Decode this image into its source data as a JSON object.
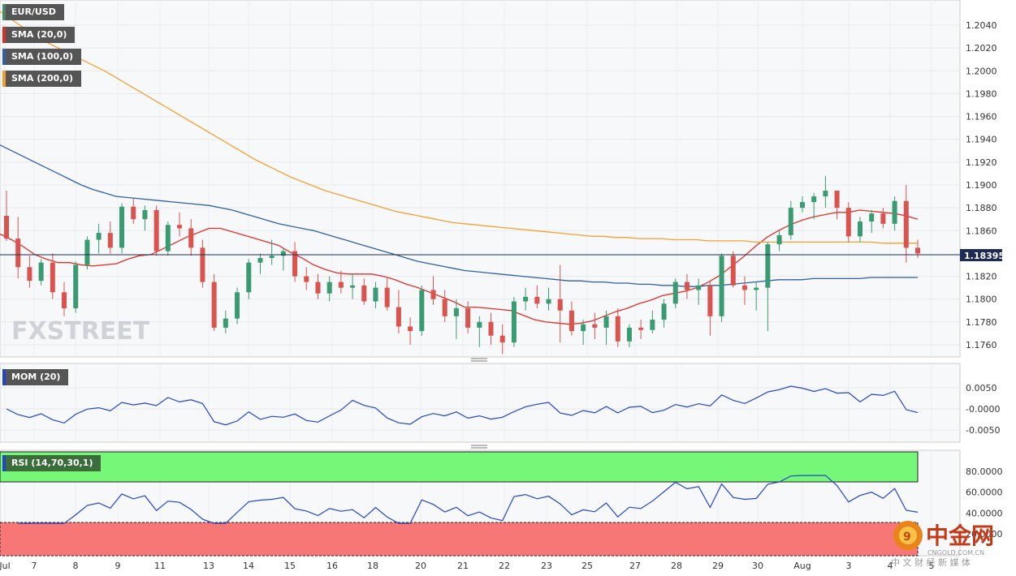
{
  "price_panel": {
    "legend": [
      {
        "label": "EUR/USD",
        "color": "#4a8a6a"
      },
      {
        "label": "SMA (20,0)",
        "color": "#d93025"
      },
      {
        "label": "SMA (100,0)",
        "color": "#2f5fa8"
      },
      {
        "label": "SMA (200,0)",
        "color": "#f0a030"
      }
    ],
    "current_price": "1.18395",
    "y_ticks": [
      "1.2040",
      "1.2020",
      "1.2000",
      "1.1980",
      "1.1960",
      "1.1940",
      "1.1920",
      "1.1900",
      "1.1880",
      "1.1860",
      "1.1820",
      "1.1800",
      "1.1780",
      "1.1760"
    ],
    "watermark": "FXSTREET"
  },
  "mom_panel": {
    "legend": "MOM (20)",
    "y_ticks": [
      "0.0050",
      "-0.0000",
      "-0.0050"
    ]
  },
  "rsi_panel": {
    "legend": "RSI (14,70,30,1)",
    "y_ticks": [
      "80.0000",
      "60.0000",
      "40.0000",
      "20.0000"
    ]
  },
  "x_axis_labels": [
    "Jul",
    "7",
    "8",
    "9",
    "11",
    "13",
    "14",
    "15",
    "16",
    "18",
    "20",
    "21",
    "22",
    "23",
    "25",
    "27",
    "28",
    "29",
    "30",
    "Aug",
    "3",
    "4",
    "5"
  ],
  "corner_logo": {
    "text": "中金网",
    "sub": "CNGOLD.COM.CN",
    "tagline": "中 文 财 经 新 媒 体"
  },
  "colors": {
    "up": "#3a9a72",
    "down": "#d9534f",
    "sma20": "#e0302a",
    "sma100": "#2f5fa8",
    "sma200": "#f5a030",
    "mom": "#2244cc",
    "rsi": "#2244cc",
    "ob": "#77f777",
    "os": "#f77777"
  },
  "chart_data": [
    {
      "type": "candlestick",
      "title": "EUR/USD",
      "ylim": [
        1.1752,
        1.2054
      ],
      "series": [
        {
          "name": "SMA (20,0)",
          "values": [
            1.1857,
            1.1852,
            1.1846,
            1.1839,
            1.1835,
            1.1832,
            1.1832,
            1.183,
            1.1829,
            1.183,
            1.1831,
            1.1835,
            1.1838,
            1.1839,
            1.1844,
            1.1849,
            1.1854,
            1.1858,
            1.1862,
            1.1862,
            1.1859,
            1.1856,
            1.1853,
            1.185,
            1.1847,
            1.1841,
            1.1836,
            1.183,
            1.1826,
            1.1823,
            1.1822,
            1.1822,
            1.1822,
            1.182,
            1.1817,
            1.1813,
            1.181,
            1.1806,
            1.1802,
            1.1798,
            1.1793,
            1.1793,
            1.1792,
            1.1791,
            1.179,
            1.1786,
            1.1782,
            1.178,
            1.1779,
            1.1778,
            1.1779,
            1.1781,
            1.1785,
            1.1789,
            1.1792,
            1.1796,
            1.1799,
            1.1803,
            1.1805,
            1.1807,
            1.181,
            1.1815,
            1.1821,
            1.1829,
            1.1837,
            1.1846,
            1.1854,
            1.186,
            1.1865,
            1.1869,
            1.1872,
            1.1874,
            1.1876,
            1.1876,
            1.1878,
            1.1877,
            1.1876,
            1.1875,
            1.1873,
            1.187
          ]
        },
        {
          "name": "SMA (100,0)",
          "values": [
            1.1935,
            1.193,
            1.1925,
            1.192,
            1.1915,
            1.191,
            1.1905,
            1.19,
            1.1896,
            1.1893,
            1.189,
            1.1889,
            1.1888,
            1.1887,
            1.1886,
            1.1885,
            1.1884,
            1.1883,
            1.1882,
            1.188,
            1.1878,
            1.1875,
            1.1872,
            1.1869,
            1.1866,
            1.1864,
            1.1862,
            1.186,
            1.1857,
            1.1854,
            1.1851,
            1.1848,
            1.1845,
            1.1842,
            1.1839,
            1.1836,
            1.1833,
            1.1831,
            1.1829,
            1.1827,
            1.1825,
            1.1824,
            1.1823,
            1.1822,
            1.1821,
            1.182,
            1.1819,
            1.1818,
            1.1817,
            1.1816,
            1.1816,
            1.1815,
            1.1815,
            1.1814,
            1.1814,
            1.1813,
            1.1813,
            1.1812,
            1.1812,
            1.1811,
            1.1811,
            1.1812,
            1.1812,
            1.1813,
            1.1814,
            1.1815,
            1.1816,
            1.1817,
            1.1817,
            1.1817,
            1.1818,
            1.1818,
            1.1818,
            1.1818,
            1.1818,
            1.1819,
            1.1819,
            1.1819,
            1.1819,
            1.1819
          ]
        },
        {
          "name": "SMA (200,0)",
          "values": [
            1.2052,
            1.2045,
            1.2038,
            1.2031,
            1.2025,
            1.202,
            1.2015,
            1.201,
            1.2005,
            1.2,
            1.1994,
            1.1988,
            1.1982,
            1.1976,
            1.197,
            1.1964,
            1.1958,
            1.1952,
            1.1946,
            1.194,
            1.1934,
            1.1928,
            1.1922,
            1.1917,
            1.1912,
            1.1907,
            1.1903,
            1.1899,
            1.1895,
            1.1892,
            1.1889,
            1.1886,
            1.1883,
            1.188,
            1.1877,
            1.1875,
            1.1873,
            1.1871,
            1.1869,
            1.1867,
            1.1866,
            1.1865,
            1.1864,
            1.1863,
            1.1862,
            1.1861,
            1.186,
            1.1859,
            1.1858,
            1.1857,
            1.1856,
            1.1855,
            1.1855,
            1.1854,
            1.1854,
            1.1853,
            1.1853,
            1.1853,
            1.1852,
            1.1852,
            1.1852,
            1.1851,
            1.1851,
            1.1851,
            1.1851,
            1.185,
            1.185,
            1.185,
            1.185,
            1.185,
            1.185,
            1.185,
            1.185,
            1.185,
            1.185,
            1.185,
            1.1849,
            1.1849,
            1.1849,
            1.1849
          ]
        }
      ],
      "candles": [
        [
          1.1873,
          1.1895,
          1.1851,
          1.1853
        ],
        [
          1.1853,
          1.1872,
          1.1818,
          1.1828
        ],
        [
          1.1828,
          1.1838,
          1.181,
          1.1816
        ],
        [
          1.1816,
          1.1835,
          1.1812,
          1.1832
        ],
        [
          1.1832,
          1.184,
          1.18,
          1.1806
        ],
        [
          1.1806,
          1.1815,
          1.1785,
          1.1792
        ],
        [
          1.1792,
          1.1833,
          1.1788,
          1.183
        ],
        [
          1.183,
          1.1855,
          1.1826,
          1.1852
        ],
        [
          1.1852,
          1.1866,
          1.184,
          1.1858
        ],
        [
          1.1858,
          1.1868,
          1.184,
          1.1845
        ],
        [
          1.1845,
          1.1884,
          1.184,
          1.1881
        ],
        [
          1.1881,
          1.1888,
          1.1866,
          1.187
        ],
        [
          1.187,
          1.1882,
          1.186,
          1.1878
        ],
        [
          1.1878,
          1.1882,
          1.1838,
          1.1842
        ],
        [
          1.1842,
          1.1868,
          1.1838,
          1.1865
        ],
        [
          1.1865,
          1.1876,
          1.1855,
          1.1862
        ],
        [
          1.1862,
          1.187,
          1.1838,
          1.1845
        ],
        [
          1.1845,
          1.1852,
          1.181,
          1.1815
        ],
        [
          1.1815,
          1.1822,
          1.1772,
          1.1775
        ],
        [
          1.1775,
          1.179,
          1.177,
          1.1783
        ],
        [
          1.1783,
          1.181,
          1.1778,
          1.1806
        ],
        [
          1.1806,
          1.1835,
          1.18,
          1.1832
        ],
        [
          1.1832,
          1.184,
          1.1822,
          1.1836
        ],
        [
          1.1836,
          1.1852,
          1.183,
          1.1838
        ],
        [
          1.1838,
          1.1845,
          1.1825,
          1.1842
        ],
        [
          1.1842,
          1.185,
          1.1815,
          1.182
        ],
        [
          1.182,
          1.1828,
          1.1808,
          1.1815
        ],
        [
          1.1815,
          1.1822,
          1.18,
          1.1805
        ],
        [
          1.1805,
          1.182,
          1.1798,
          1.1815
        ],
        [
          1.1815,
          1.1825,
          1.1805,
          1.181
        ],
        [
          1.181,
          1.1822,
          1.18,
          1.1812
        ],
        [
          1.1812,
          1.1818,
          1.1795,
          1.1798
        ],
        [
          1.1798,
          1.1815,
          1.1792,
          1.181
        ],
        [
          1.181,
          1.1818,
          1.179,
          1.1793
        ],
        [
          1.1793,
          1.1808,
          1.177,
          1.1776
        ],
        [
          1.1776,
          1.1784,
          1.176,
          1.1772
        ],
        [
          1.1772,
          1.1812,
          1.1768,
          1.1808
        ],
        [
          1.1808,
          1.182,
          1.1795,
          1.18
        ],
        [
          1.18,
          1.1808,
          1.178,
          1.1785
        ],
        [
          1.1785,
          1.18,
          1.1765,
          1.1792
        ],
        [
          1.1792,
          1.1798,
          1.177,
          1.1775
        ],
        [
          1.1775,
          1.1785,
          1.1758,
          1.178
        ],
        [
          1.178,
          1.1788,
          1.176,
          1.1768
        ],
        [
          1.1768,
          1.1778,
          1.1752,
          1.1762
        ],
        [
          1.1762,
          1.1802,
          1.1758,
          1.1798
        ],
        [
          1.1798,
          1.181,
          1.179,
          1.1802
        ],
        [
          1.1802,
          1.1812,
          1.1792,
          1.1796
        ],
        [
          1.1796,
          1.181,
          1.179,
          1.18
        ],
        [
          1.18,
          1.183,
          1.1762,
          1.179
        ],
        [
          1.179,
          1.1798,
          1.1768,
          1.1772
        ],
        [
          1.1772,
          1.1782,
          1.176,
          1.1778
        ],
        [
          1.1778,
          1.1788,
          1.1765,
          1.1775
        ],
        [
          1.1775,
          1.179,
          1.176,
          1.1785
        ],
        [
          1.1785,
          1.1792,
          1.1758,
          1.1763
        ],
        [
          1.1763,
          1.1778,
          1.1758,
          1.1775
        ],
        [
          1.1775,
          1.1782,
          1.1765,
          1.1773
        ],
        [
          1.1773,
          1.179,
          1.177,
          1.1782
        ],
        [
          1.1782,
          1.18,
          1.1775,
          1.1796
        ],
        [
          1.1796,
          1.1818,
          1.1792,
          1.1815
        ],
        [
          1.1815,
          1.1822,
          1.18,
          1.1808
        ],
        [
          1.1808,
          1.1818,
          1.1795,
          1.1812
        ],
        [
          1.1812,
          1.1815,
          1.1768,
          1.1785
        ],
        [
          1.1785,
          1.184,
          1.178,
          1.1838
        ],
        [
          1.1838,
          1.1842,
          1.181,
          1.1812
        ],
        [
          1.1812,
          1.182,
          1.1795,
          1.1808
        ],
        [
          1.1808,
          1.1815,
          1.179,
          1.181
        ],
        [
          1.181,
          1.185,
          1.1772,
          1.1848
        ],
        [
          1.1848,
          1.186,
          1.1842,
          1.1856
        ],
        [
          1.1856,
          1.1886,
          1.1852,
          1.188
        ],
        [
          1.188,
          1.189,
          1.1876,
          1.1885
        ],
        [
          1.1885,
          1.1893,
          1.187,
          1.189
        ],
        [
          1.189,
          1.1908,
          1.188,
          1.1895
        ],
        [
          1.1895,
          1.1895,
          1.187,
          1.188
        ],
        [
          1.188,
          1.1885,
          1.185,
          1.1855
        ],
        [
          1.1855,
          1.1872,
          1.185,
          1.1868
        ],
        [
          1.1868,
          1.1878,
          1.1858,
          1.1875
        ],
        [
          1.1875,
          1.188,
          1.1862,
          1.1866
        ],
        [
          1.1866,
          1.189,
          1.186,
          1.1886
        ],
        [
          1.1886,
          1.19,
          1.1832,
          1.1845
        ],
        [
          1.1845,
          1.1852,
          1.1836,
          1.184
        ]
      ]
    },
    {
      "type": "line",
      "title": "MOM (20)",
      "ylim": [
        -0.008,
        0.008
      ]
    },
    {
      "type": "line",
      "title": "RSI (14,70,30,1)",
      "ylim": [
        15,
        88
      ]
    }
  ]
}
